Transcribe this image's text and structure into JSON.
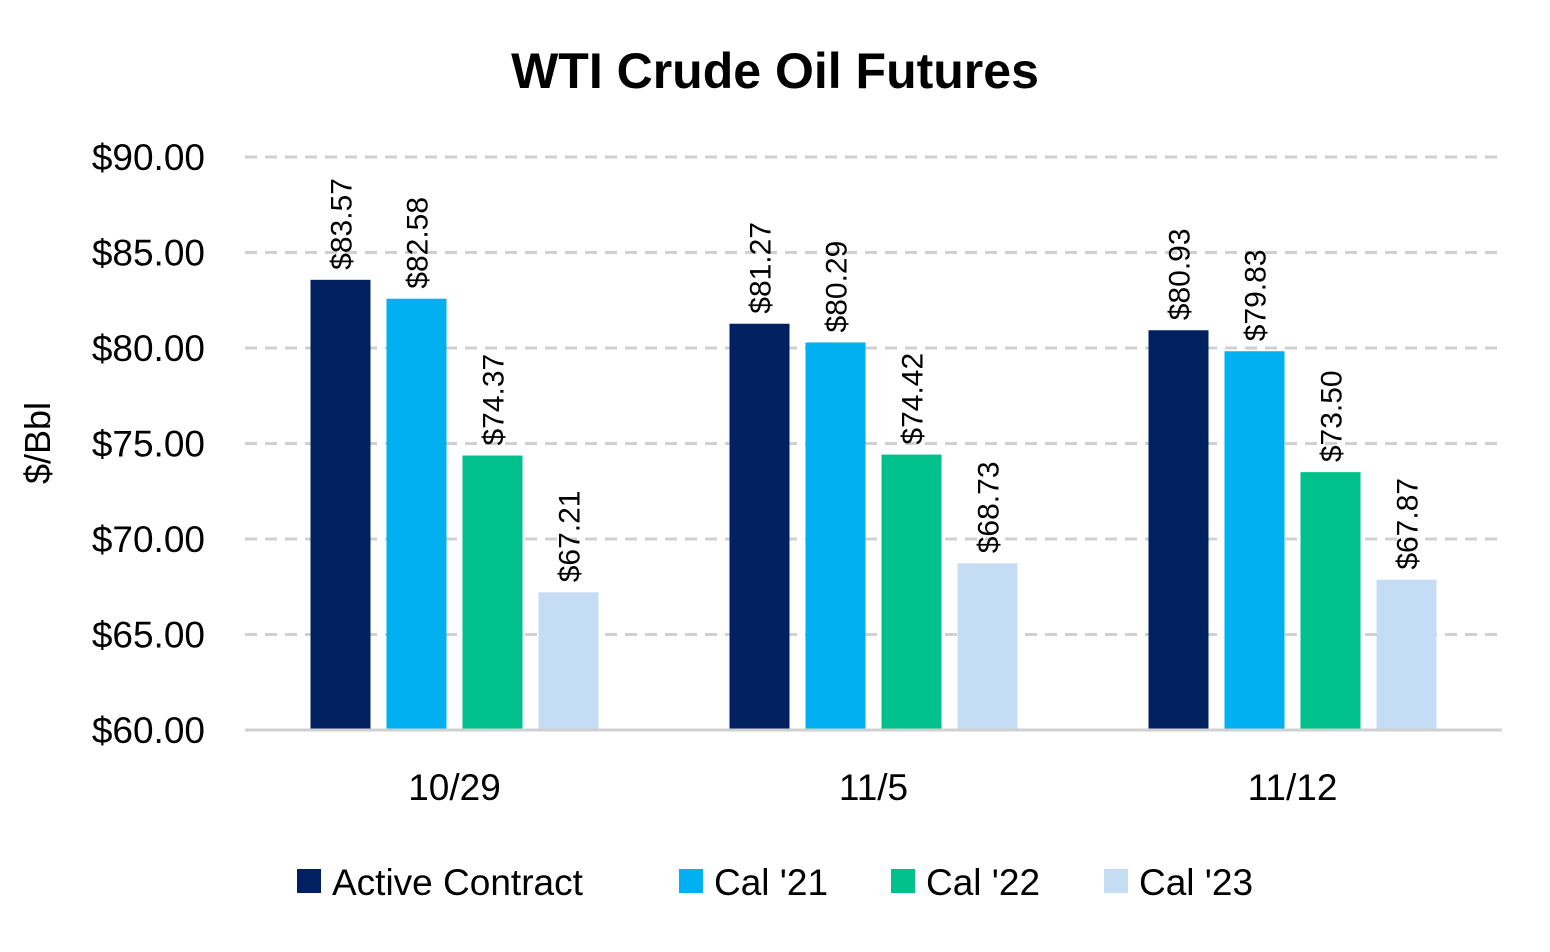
{
  "chart_data": {
    "type": "bar",
    "title": "WTI Crude Oil Futures",
    "xlabel": "",
    "ylabel": "$/Bbl",
    "ylim": [
      60,
      90
    ],
    "yticks": [
      60,
      65,
      70,
      75,
      80,
      85,
      90
    ],
    "ytick_labels": [
      "$60.00",
      "$65.00",
      "$70.00",
      "$75.00",
      "$80.00",
      "$85.00",
      "$90.00"
    ],
    "grid": true,
    "legend_position": "bottom",
    "categories": [
      "10/29",
      "11/5",
      "11/12"
    ],
    "series": [
      {
        "name": "Active Contract",
        "color": "#002060",
        "values": [
          83.57,
          81.27,
          80.93
        ],
        "labels": [
          "$83.57",
          "$81.27",
          "$80.93"
        ]
      },
      {
        "name": "Cal '21",
        "color": "#00B0F0",
        "values": [
          82.58,
          80.29,
          79.83
        ],
        "labels": [
          "$82.58",
          "$80.29",
          "$79.83"
        ]
      },
      {
        "name": "Cal '22",
        "color": "#00C08B",
        "values": [
          74.37,
          74.42,
          73.5
        ],
        "labels": [
          "$74.37",
          "$74.42",
          "$73.50"
        ]
      },
      {
        "name": "Cal '23",
        "color": "#C5DCF5",
        "values": [
          67.21,
          68.73,
          67.87
        ],
        "labels": [
          "$67.21",
          "$68.73",
          "$67.87"
        ]
      }
    ]
  }
}
